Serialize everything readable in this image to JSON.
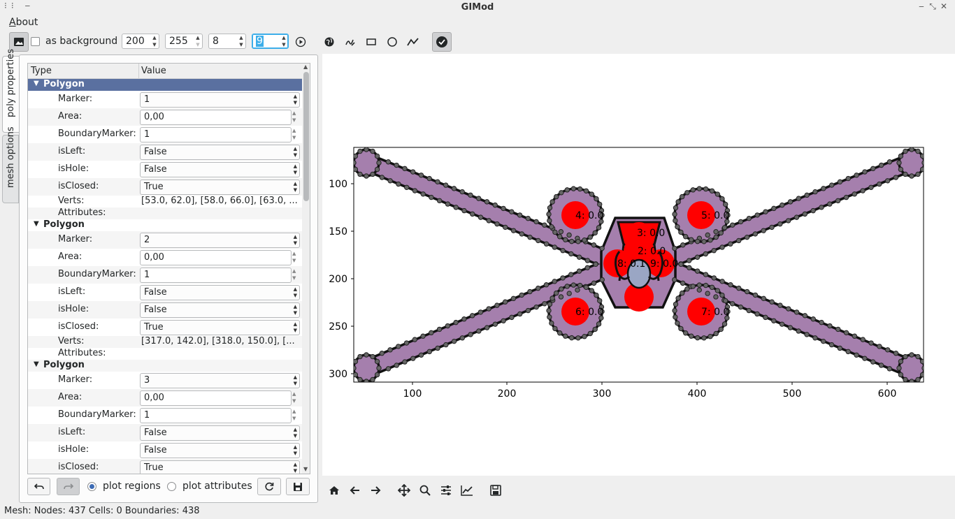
{
  "window": {
    "title": "GIMod"
  },
  "menu": {
    "about": "About"
  },
  "toolbar": {
    "background_label": "as background",
    "spin1": "200",
    "spin2": "255",
    "spin3": "8",
    "spin4": "9"
  },
  "tabs": {
    "poly": "poly properties",
    "mesh": "mesh options"
  },
  "tree": {
    "col_type": "Type",
    "col_value": "Value",
    "groups": [
      {
        "title": "Polygon",
        "marker": "1",
        "area": "0,00",
        "boundary": "1",
        "isLeft": "False",
        "isHole": "False",
        "isClosed": "True",
        "verts": "[53.0, 62.0], [58.0, 66.0], [63.0, ..."
      },
      {
        "title": "Polygon",
        "marker": "2",
        "area": "0,00",
        "boundary": "1",
        "isLeft": "False",
        "isHole": "False",
        "isClosed": "True",
        "verts": "[317.0, 142.0], [318.0, 150.0], [..."
      },
      {
        "title": "Polygon",
        "marker": "3",
        "area": "0,00",
        "boundary": "1",
        "isLeft": "False",
        "isHole": "False",
        "isClosed": "True"
      }
    ],
    "labels": {
      "marker": "Marker:",
      "area": "Area:",
      "boundary": "BoundaryMarker:",
      "isLeft": "isLeft:",
      "isHole": "isHole:",
      "isClosed": "isClosed:",
      "verts": "Verts:",
      "attributes": "Attributes:"
    }
  },
  "bottom": {
    "plot_regions": "plot regions",
    "plot_attributes": "plot attributes"
  },
  "plot": {
    "xticks": [
      "100",
      "200",
      "300",
      "400",
      "500",
      "600"
    ],
    "yticks": [
      "100",
      "150",
      "200",
      "250",
      "300"
    ],
    "region_labels": [
      "4: 0.0",
      "5: 0.0",
      "3: 0.0",
      "2: 0.0",
      "8: 0.1",
      "9: 0.0",
      "6: 0.0",
      "7: 0.0"
    ],
    "colors": {
      "fill": "#a57fad",
      "region": "#ff0000",
      "center": "#9aa6c4"
    }
  },
  "status": {
    "text": "Mesh: Nodes: 437 Cells: 0 Boundaries: 438"
  }
}
